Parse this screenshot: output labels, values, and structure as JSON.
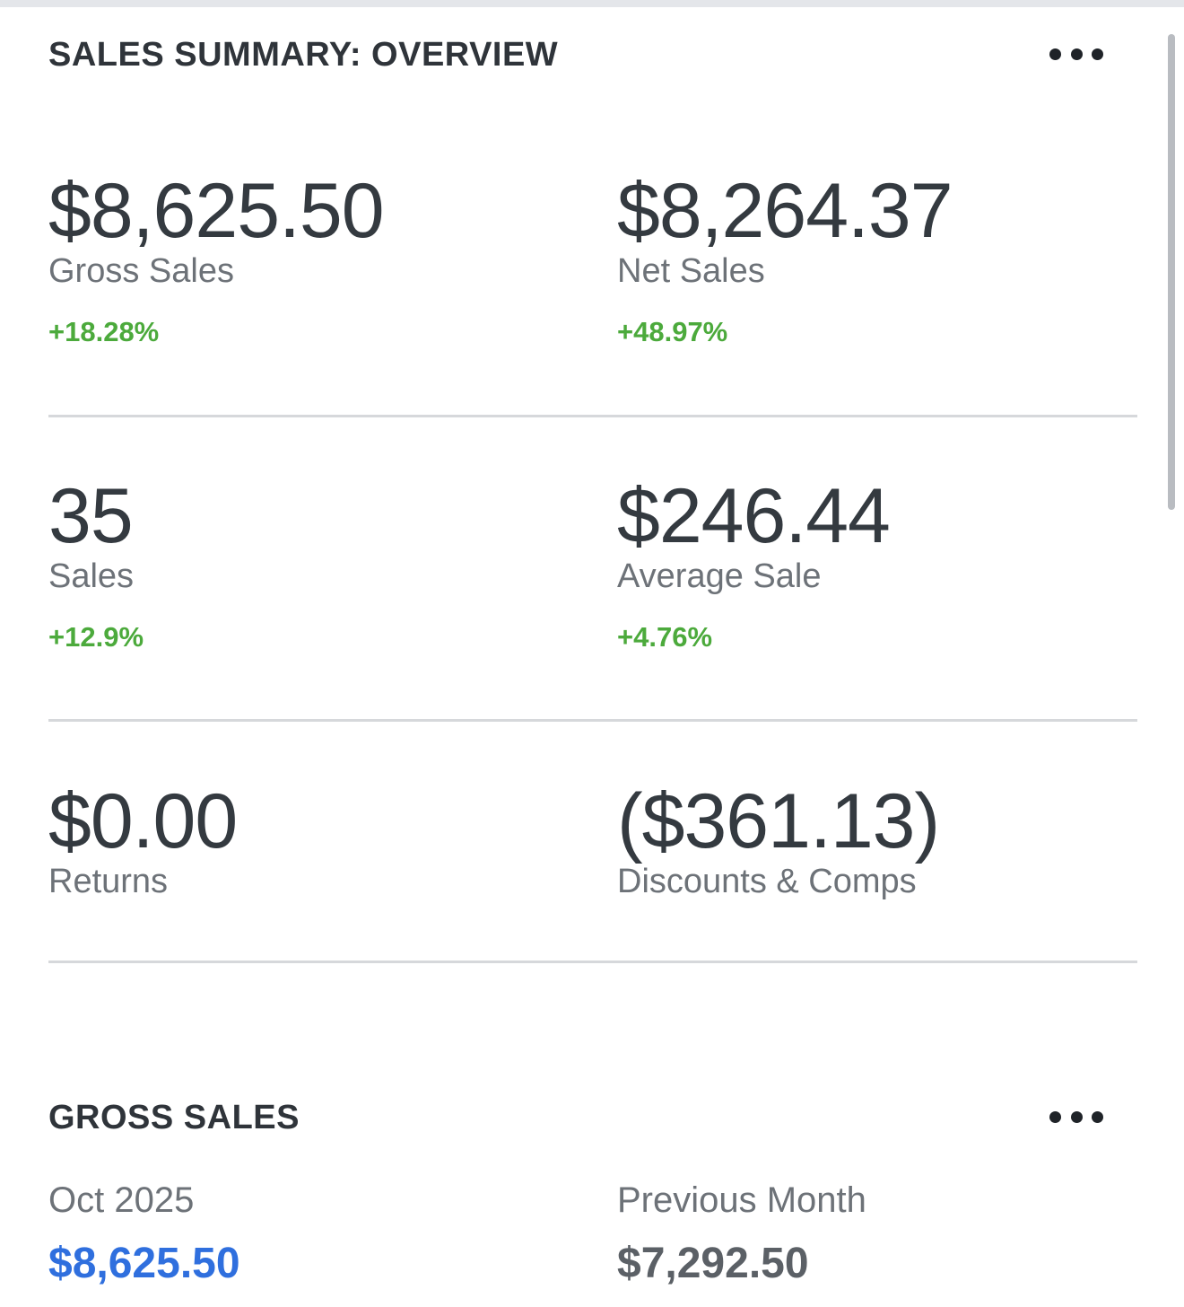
{
  "overview": {
    "title": "SALES SUMMARY: OVERVIEW",
    "more_icon": "more-horizontal-icon",
    "metrics": [
      {
        "value": "$8,625.50",
        "label": "Gross Sales",
        "change": "+18.28%"
      },
      {
        "value": "$8,264.37",
        "label": "Net Sales",
        "change": "+48.97%"
      },
      {
        "value": "35",
        "label": "Sales",
        "change": "+12.9%"
      },
      {
        "value": "$246.44",
        "label": "Average Sale",
        "change": "+4.76%"
      },
      {
        "value": "$0.00",
        "label": "Returns"
      },
      {
        "value": "($361.13)",
        "label": "Discounts & Comps"
      }
    ]
  },
  "gross_sales": {
    "title": "GROSS SALES",
    "more_icon": "more-horizontal-icon",
    "current": {
      "period": "Oct 2025",
      "amount": "$8,625.50"
    },
    "previous": {
      "period": "Previous Month",
      "amount": "$7,292.50"
    }
  },
  "colors": {
    "positive": "#4caa3c",
    "accent_blue": "#2f6fde",
    "text_primary": "#343a40",
    "text_secondary": "#6d7278"
  }
}
